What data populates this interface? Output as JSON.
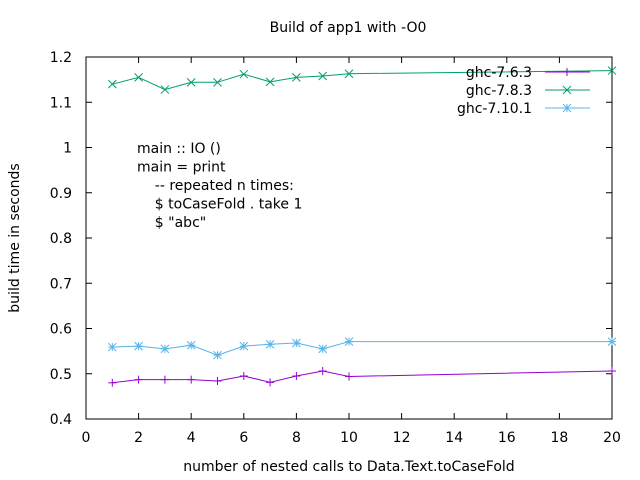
{
  "chart_data": {
    "type": "line",
    "title": "Build of app1 with -O0",
    "xlabel": "number of nested calls to Data.Text.toCaseFold",
    "ylabel": "build time in seconds",
    "xlim": [
      0,
      20
    ],
    "ylim": [
      0.4,
      1.2
    ],
    "xticks": [
      0,
      2,
      4,
      6,
      8,
      10,
      12,
      14,
      16,
      18,
      20
    ],
    "yticks": [
      0.4,
      0.5,
      0.6,
      0.7,
      0.8,
      0.9,
      1,
      1.1,
      1.2
    ],
    "grid": false,
    "legend_position": "top-right",
    "annotation": [
      "main :: IO ()",
      "main = print",
      "    -- repeated n times:",
      "    $ toCaseFold . take 1",
      "    $ \"abc\""
    ],
    "series": [
      {
        "name": "ghc-7.6.3",
        "color": "#9400d3",
        "marker": "plus",
        "x": [
          1,
          2,
          3,
          4,
          5,
          6,
          7,
          8,
          9,
          10,
          20
        ],
        "y": [
          0.48,
          0.487,
          0.487,
          0.487,
          0.484,
          0.495,
          0.481,
          0.495,
          0.506,
          0.494,
          0.506
        ]
      },
      {
        "name": "ghc-7.8.3",
        "color": "#009e73",
        "marker": "cross",
        "x": [
          1,
          2,
          3,
          4,
          5,
          6,
          7,
          8,
          9,
          10,
          20
        ],
        "y": [
          1.14,
          1.155,
          1.128,
          1.144,
          1.144,
          1.162,
          1.145,
          1.155,
          1.158,
          1.163,
          1.17
        ]
      },
      {
        "name": "ghc-7.10.1",
        "color": "#56b4e9",
        "marker": "star",
        "x": [
          1,
          2,
          3,
          4,
          5,
          6,
          7,
          8,
          9,
          10,
          20
        ],
        "y": [
          0.559,
          0.561,
          0.555,
          0.563,
          0.541,
          0.561,
          0.565,
          0.568,
          0.555,
          0.571,
          0.571
        ]
      }
    ]
  }
}
